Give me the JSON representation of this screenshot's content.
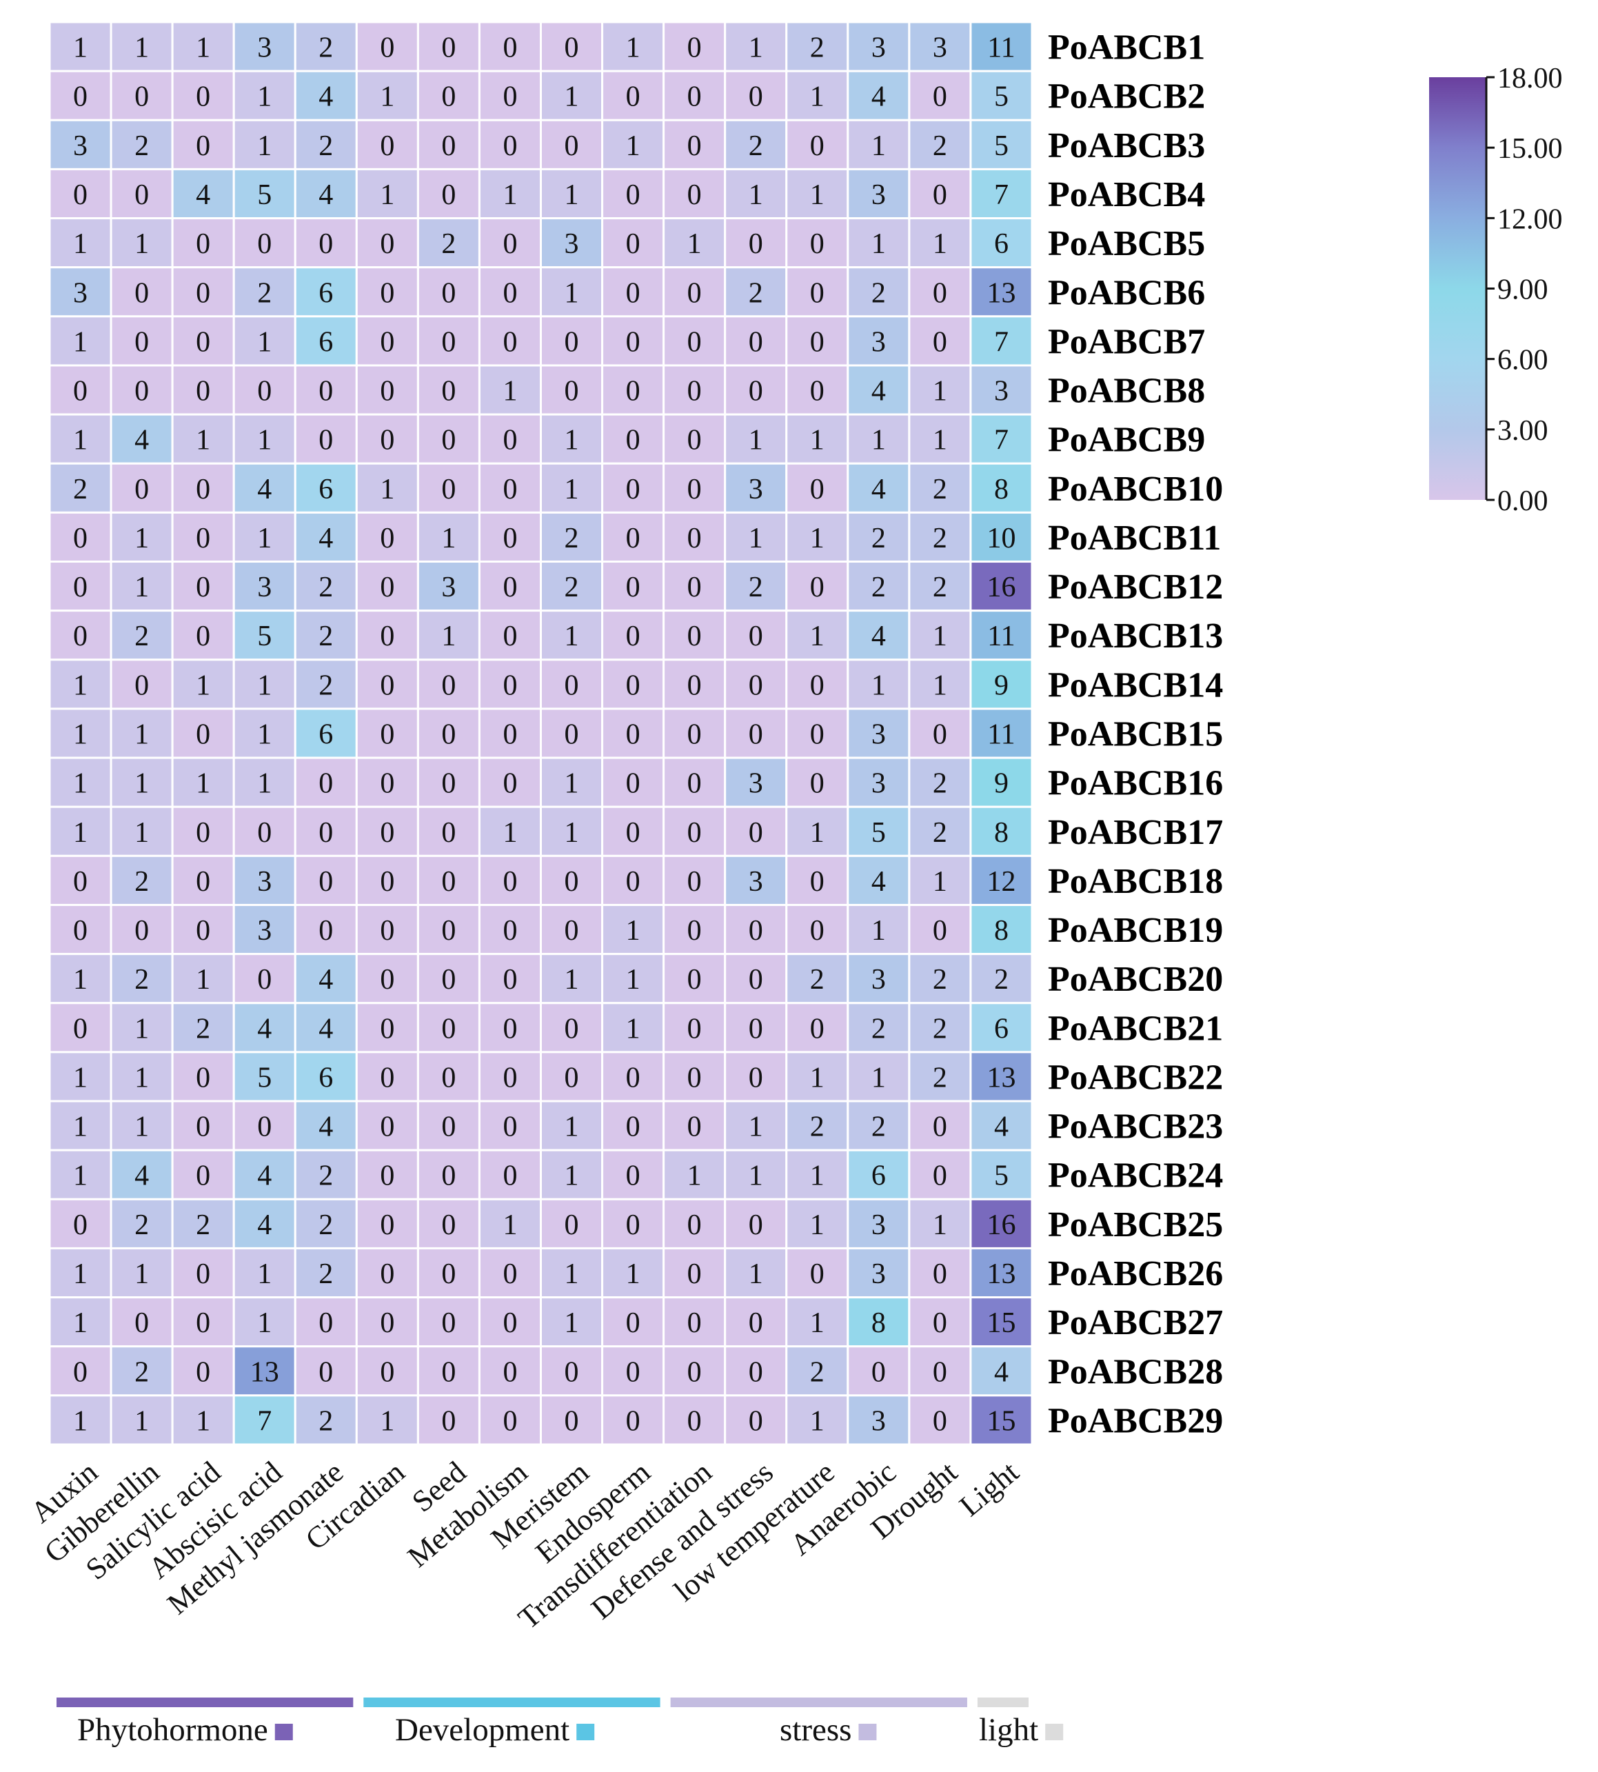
{
  "chart_data": {
    "type": "heatmap",
    "title": "",
    "columns": [
      "Auxin",
      "Gibberellin",
      "Salicylic acid",
      "Abscisic acid",
      "Methyl jasmonate",
      "Circadian",
      "Seed",
      "Metabolism",
      "Meristem",
      "Endosperm",
      "Transdifferentiation",
      "Defense and stress",
      "low temperature",
      "Anaerobic",
      "Drought",
      "Light"
    ],
    "rows": [
      "PoABCB1",
      "PoABCB2",
      "PoABCB3",
      "PoABCB4",
      "PoABCB5",
      "PoABCB6",
      "PoABCB7",
      "PoABCB8",
      "PoABCB9",
      "PoABCB10",
      "PoABCB11",
      "PoABCB12",
      "PoABCB13",
      "PoABCB14",
      "PoABCB15",
      "PoABCB16",
      "PoABCB17",
      "PoABCB18",
      "PoABCB19",
      "PoABCB20",
      "PoABCB21",
      "PoABCB22",
      "PoABCB23",
      "PoABCB24",
      "PoABCB25",
      "PoABCB26",
      "PoABCB27",
      "PoABCB28",
      "PoABCB29"
    ],
    "values": [
      [
        1,
        1,
        1,
        3,
        2,
        0,
        0,
        0,
        0,
        1,
        0,
        1,
        2,
        3,
        3,
        11
      ],
      [
        0,
        0,
        0,
        1,
        4,
        1,
        0,
        0,
        1,
        0,
        0,
        0,
        1,
        4,
        0,
        5
      ],
      [
        3,
        2,
        0,
        1,
        2,
        0,
        0,
        0,
        0,
        1,
        0,
        2,
        0,
        1,
        2,
        5
      ],
      [
        0,
        0,
        4,
        5,
        4,
        1,
        0,
        1,
        1,
        0,
        0,
        1,
        1,
        3,
        0,
        7
      ],
      [
        1,
        1,
        0,
        0,
        0,
        0,
        2,
        0,
        3,
        0,
        1,
        0,
        0,
        1,
        1,
        6
      ],
      [
        3,
        0,
        0,
        2,
        6,
        0,
        0,
        0,
        1,
        0,
        0,
        2,
        0,
        2,
        0,
        13
      ],
      [
        1,
        0,
        0,
        1,
        6,
        0,
        0,
        0,
        0,
        0,
        0,
        0,
        0,
        3,
        0,
        7
      ],
      [
        0,
        0,
        0,
        0,
        0,
        0,
        0,
        1,
        0,
        0,
        0,
        0,
        0,
        4,
        1,
        3
      ],
      [
        1,
        4,
        1,
        1,
        0,
        0,
        0,
        0,
        1,
        0,
        0,
        1,
        1,
        1,
        1,
        7
      ],
      [
        2,
        0,
        0,
        4,
        6,
        1,
        0,
        0,
        1,
        0,
        0,
        3,
        0,
        4,
        2,
        8
      ],
      [
        0,
        1,
        0,
        1,
        4,
        0,
        1,
        0,
        2,
        0,
        0,
        1,
        1,
        2,
        2,
        10
      ],
      [
        0,
        1,
        0,
        3,
        2,
        0,
        3,
        0,
        2,
        0,
        0,
        2,
        0,
        2,
        2,
        16
      ],
      [
        0,
        2,
        0,
        5,
        2,
        0,
        1,
        0,
        1,
        0,
        0,
        0,
        1,
        4,
        1,
        11
      ],
      [
        1,
        0,
        1,
        1,
        2,
        0,
        0,
        0,
        0,
        0,
        0,
        0,
        0,
        1,
        1,
        9
      ],
      [
        1,
        1,
        0,
        1,
        6,
        0,
        0,
        0,
        0,
        0,
        0,
        0,
        0,
        3,
        0,
        11
      ],
      [
        1,
        1,
        1,
        1,
        0,
        0,
        0,
        0,
        1,
        0,
        0,
        3,
        0,
        3,
        2,
        9
      ],
      [
        1,
        1,
        0,
        0,
        0,
        0,
        0,
        1,
        1,
        0,
        0,
        0,
        1,
        5,
        2,
        8
      ],
      [
        0,
        2,
        0,
        3,
        0,
        0,
        0,
        0,
        0,
        0,
        0,
        3,
        0,
        4,
        1,
        12
      ],
      [
        0,
        0,
        0,
        3,
        0,
        0,
        0,
        0,
        0,
        1,
        0,
        0,
        0,
        1,
        0,
        8
      ],
      [
        1,
        2,
        1,
        0,
        4,
        0,
        0,
        0,
        1,
        1,
        0,
        0,
        2,
        3,
        2,
        2
      ],
      [
        0,
        1,
        2,
        4,
        4,
        0,
        0,
        0,
        0,
        1,
        0,
        0,
        0,
        2,
        2,
        6
      ],
      [
        1,
        1,
        0,
        5,
        6,
        0,
        0,
        0,
        0,
        0,
        0,
        0,
        1,
        1,
        2,
        13
      ],
      [
        1,
        1,
        0,
        0,
        4,
        0,
        0,
        0,
        1,
        0,
        0,
        1,
        2,
        2,
        0,
        4
      ],
      [
        1,
        4,
        0,
        4,
        2,
        0,
        0,
        0,
        1,
        0,
        1,
        1,
        1,
        6,
        0,
        5
      ],
      [
        0,
        2,
        2,
        4,
        2,
        0,
        0,
        1,
        0,
        0,
        0,
        0,
        1,
        3,
        1,
        16
      ],
      [
        1,
        1,
        0,
        1,
        2,
        0,
        0,
        0,
        1,
        1,
        0,
        1,
        0,
        3,
        0,
        13
      ],
      [
        1,
        0,
        0,
        1,
        0,
        0,
        0,
        0,
        1,
        0,
        0,
        0,
        1,
        8,
        0,
        15
      ],
      [
        0,
        2,
        0,
        13,
        0,
        0,
        0,
        0,
        0,
        0,
        0,
        0,
        2,
        0,
        0,
        4
      ],
      [
        1,
        1,
        1,
        7,
        2,
        1,
        0,
        0,
        0,
        0,
        0,
        0,
        1,
        3,
        0,
        15
      ]
    ],
    "colorbar": {
      "range": [
        0,
        18
      ],
      "ticks": [
        "0.00",
        "3.00",
        "6.00",
        "9.00",
        "12.00",
        "15.00",
        "18.00"
      ],
      "colors": [
        "#d8c6ea",
        "#b3c8ea",
        "#a2d6ee",
        "#8dd8e9",
        "#8aaee0",
        "#8080cc",
        "#6a3f9e"
      ]
    },
    "groups": [
      {
        "label": "Phytohormone",
        "color": "#7b62b6",
        "columns": [
          0,
          4
        ]
      },
      {
        "label": "Development",
        "color": "#5bc5e4",
        "columns": [
          5,
          9
        ]
      },
      {
        "label": "stress",
        "color": "#c3bce0",
        "columns": [
          10,
          14
        ]
      },
      {
        "label": "light",
        "color": "#dcdcdc",
        "columns": [
          15,
          15
        ]
      }
    ]
  }
}
